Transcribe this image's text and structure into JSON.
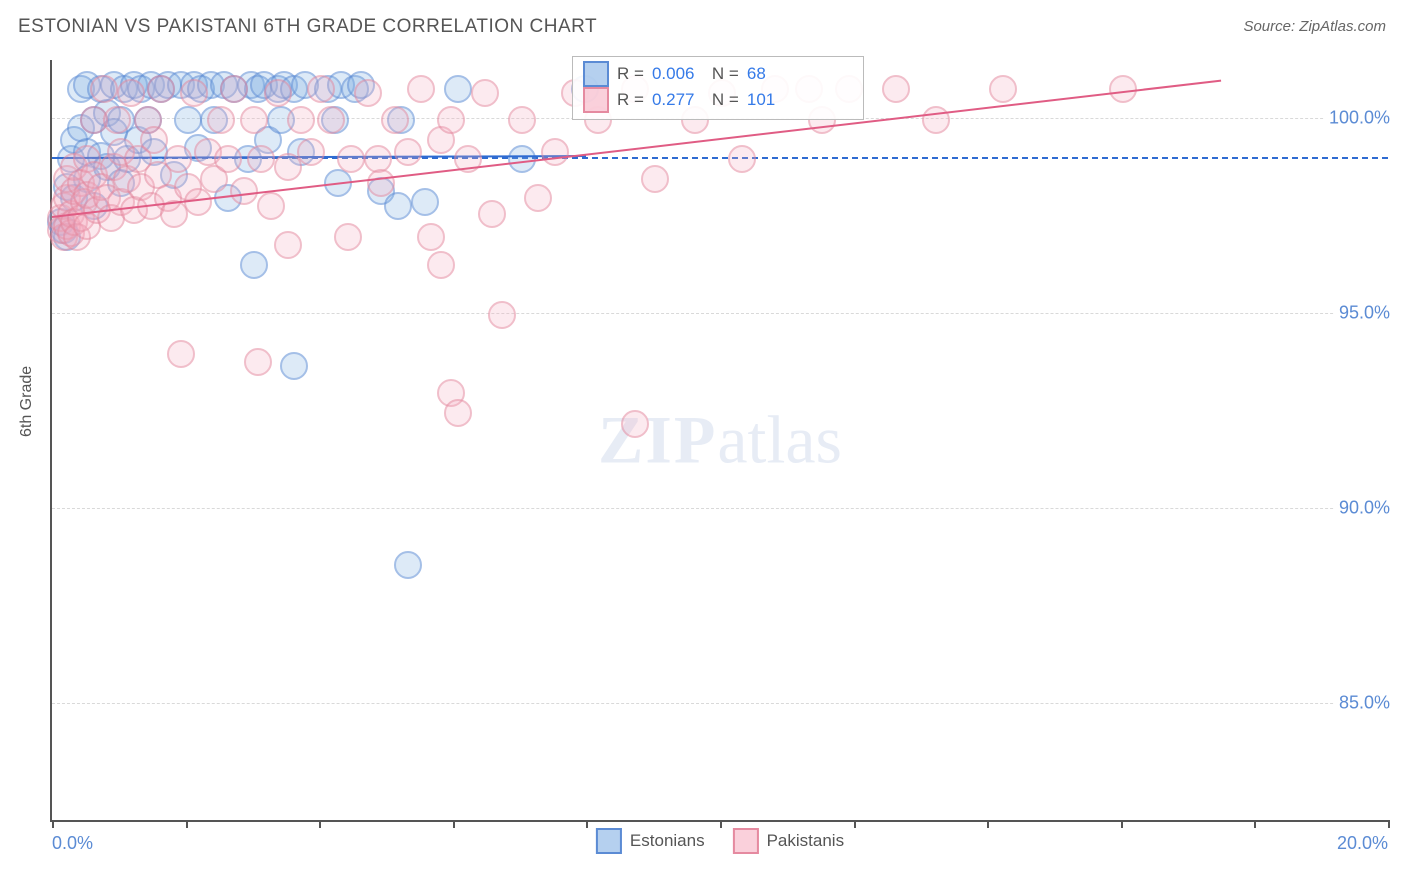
{
  "title": "ESTONIAN VS PAKISTANI 6TH GRADE CORRELATION CHART",
  "source": "Source: ZipAtlas.com",
  "watermark_a": "ZIP",
  "watermark_b": "atlas",
  "yaxis_title": "6th Grade",
  "chart": {
    "type": "scatter",
    "xlim": [
      0,
      20
    ],
    "ylim": [
      82,
      101.5
    ],
    "yticks": [
      85.0,
      90.0,
      95.0,
      100.0
    ],
    "ytick_labels": [
      "85.0%",
      "90.0%",
      "95.0%",
      "100.0%"
    ],
    "xticks": [
      0,
      2,
      4,
      6,
      8,
      10,
      12,
      14,
      16,
      18,
      20
    ],
    "xlabel_min": "0.0%",
    "xlabel_max": "20.0%",
    "grid_color": "#d9d9d9",
    "background_color": "#ffffff",
    "axis_color": "#555555",
    "ref_dashed_y": 99.0,
    "series": [
      {
        "name": "Estonians",
        "color_fill": "rgba(120,170,225,0.45)",
        "color_border": "#5b8bd4",
        "R": "0.006",
        "N": "68",
        "trend": {
          "x1": 0,
          "y1": 99.0,
          "x2": 8.0,
          "y2": 99.05,
          "color": "#2e6bd1"
        },
        "points": [
          [
            0.1,
            97.4
          ],
          [
            0.15,
            97.2
          ],
          [
            0.2,
            97.0
          ],
          [
            0.2,
            98.3
          ],
          [
            0.25,
            99.0
          ],
          [
            0.3,
            98.0
          ],
          [
            0.3,
            99.5
          ],
          [
            0.4,
            100.8
          ],
          [
            0.4,
            99.8
          ],
          [
            0.5,
            98.5
          ],
          [
            0.5,
            99.2
          ],
          [
            0.5,
            100.9
          ],
          [
            0.6,
            97.8
          ],
          [
            0.6,
            100.0
          ],
          [
            0.7,
            99.1
          ],
          [
            0.7,
            100.8
          ],
          [
            0.8,
            98.8
          ],
          [
            0.8,
            100.2
          ],
          [
            0.9,
            99.7
          ],
          [
            0.9,
            100.9
          ],
          [
            1.0,
            98.4
          ],
          [
            1.0,
            100.0
          ],
          [
            1.05,
            100.8
          ],
          [
            1.1,
            99.0
          ],
          [
            1.2,
            100.9
          ],
          [
            1.25,
            99.5
          ],
          [
            1.3,
            100.8
          ],
          [
            1.4,
            100.0
          ],
          [
            1.45,
            100.9
          ],
          [
            1.5,
            99.2
          ],
          [
            1.6,
            100.8
          ],
          [
            1.7,
            100.9
          ],
          [
            1.8,
            98.6
          ],
          [
            1.9,
            100.9
          ],
          [
            2.0,
            100.0
          ],
          [
            2.1,
            100.9
          ],
          [
            2.15,
            99.3
          ],
          [
            2.2,
            100.8
          ],
          [
            2.35,
            100.9
          ],
          [
            2.4,
            100.0
          ],
          [
            2.55,
            100.9
          ],
          [
            2.6,
            98.0
          ],
          [
            2.7,
            100.8
          ],
          [
            2.9,
            99.0
          ],
          [
            2.95,
            100.9
          ],
          [
            3.0,
            96.3
          ],
          [
            3.05,
            100.8
          ],
          [
            3.15,
            100.9
          ],
          [
            3.2,
            99.5
          ],
          [
            3.35,
            100.8
          ],
          [
            3.4,
            100.0
          ],
          [
            3.45,
            100.9
          ],
          [
            3.6,
            100.8
          ],
          [
            3.7,
            99.2
          ],
          [
            3.75,
            100.9
          ],
          [
            3.6,
            93.7
          ],
          [
            4.1,
            100.8
          ],
          [
            4.2,
            100.0
          ],
          [
            4.25,
            98.4
          ],
          [
            4.3,
            100.9
          ],
          [
            4.5,
            100.8
          ],
          [
            4.6,
            100.9
          ],
          [
            4.9,
            98.2
          ],
          [
            5.15,
            97.8
          ],
          [
            5.2,
            100.0
          ],
          [
            5.3,
            88.6
          ],
          [
            5.55,
            97.9
          ],
          [
            6.05,
            100.8
          ],
          [
            7.0,
            99.0
          ],
          [
            7.95,
            100.8
          ]
        ]
      },
      {
        "name": "Pakistanis",
        "color_fill": "rgba(245,170,190,0.45)",
        "color_border": "#e58aa0",
        "R": "0.277",
        "N": "101",
        "trend": {
          "x1": 0,
          "y1": 97.5,
          "x2": 17.5,
          "y2": 101.0,
          "color": "#e05c84"
        },
        "points": [
          [
            0.1,
            97.2
          ],
          [
            0.1,
            97.5
          ],
          [
            0.15,
            97.0
          ],
          [
            0.15,
            97.8
          ],
          [
            0.2,
            97.3
          ],
          [
            0.2,
            98.0
          ],
          [
            0.2,
            98.5
          ],
          [
            0.25,
            97.1
          ],
          [
            0.25,
            97.6
          ],
          [
            0.3,
            97.4
          ],
          [
            0.3,
            98.2
          ],
          [
            0.3,
            98.8
          ],
          [
            0.35,
            97.0
          ],
          [
            0.4,
            97.5
          ],
          [
            0.4,
            98.4
          ],
          [
            0.45,
            97.9
          ],
          [
            0.5,
            97.3
          ],
          [
            0.5,
            98.1
          ],
          [
            0.5,
            99.0
          ],
          [
            0.6,
            98.6
          ],
          [
            0.6,
            100.0
          ],
          [
            0.65,
            97.7
          ],
          [
            0.7,
            98.3
          ],
          [
            0.75,
            100.8
          ],
          [
            0.8,
            98.0
          ],
          [
            0.85,
            97.5
          ],
          [
            0.9,
            98.8
          ],
          [
            0.95,
            100.0
          ],
          [
            1.0,
            97.9
          ],
          [
            1.0,
            99.2
          ],
          [
            1.1,
            98.5
          ],
          [
            1.15,
            100.7
          ],
          [
            1.2,
            97.7
          ],
          [
            1.25,
            99.0
          ],
          [
            1.3,
            98.3
          ],
          [
            1.4,
            100.0
          ],
          [
            1.45,
            97.8
          ],
          [
            1.5,
            99.5
          ],
          [
            1.55,
            98.6
          ],
          [
            1.6,
            100.8
          ],
          [
            1.7,
            98.0
          ],
          [
            1.8,
            97.6
          ],
          [
            1.85,
            99.0
          ],
          [
            1.9,
            94.0
          ],
          [
            2.0,
            98.3
          ],
          [
            2.1,
            100.7
          ],
          [
            2.15,
            97.9
          ],
          [
            2.3,
            99.2
          ],
          [
            2.4,
            98.5
          ],
          [
            2.5,
            100.0
          ],
          [
            2.6,
            99.0
          ],
          [
            2.7,
            100.8
          ],
          [
            2.85,
            98.2
          ],
          [
            3.0,
            100.0
          ],
          [
            3.05,
            93.8
          ],
          [
            3.1,
            99.0
          ],
          [
            3.25,
            97.8
          ],
          [
            3.35,
            100.7
          ],
          [
            3.5,
            98.8
          ],
          [
            3.5,
            96.8
          ],
          [
            3.7,
            100.0
          ],
          [
            3.85,
            99.2
          ],
          [
            4.0,
            100.8
          ],
          [
            4.15,
            100.0
          ],
          [
            4.4,
            97.0
          ],
          [
            4.45,
            99.0
          ],
          [
            4.7,
            100.7
          ],
          [
            4.85,
            99.0
          ],
          [
            4.9,
            98.4
          ],
          [
            5.1,
            100.0
          ],
          [
            5.3,
            99.2
          ],
          [
            5.5,
            100.8
          ],
          [
            5.65,
            97.0
          ],
          [
            5.8,
            99.5
          ],
          [
            5.8,
            96.3
          ],
          [
            5.95,
            100.0
          ],
          [
            5.95,
            93.0
          ],
          [
            6.05,
            92.5
          ],
          [
            6.2,
            99.0
          ],
          [
            6.45,
            100.7
          ],
          [
            6.55,
            97.6
          ],
          [
            6.7,
            95.0
          ],
          [
            7.0,
            100.0
          ],
          [
            7.25,
            98.0
          ],
          [
            7.5,
            99.2
          ],
          [
            7.8,
            100.7
          ],
          [
            8.15,
            100.0
          ],
          [
            8.7,
            100.8
          ],
          [
            8.7,
            92.2
          ],
          [
            9.0,
            98.5
          ],
          [
            9.6,
            100.0
          ],
          [
            10.0,
            100.7
          ],
          [
            10.3,
            99.0
          ],
          [
            10.8,
            100.8
          ],
          [
            11.3,
            100.8
          ],
          [
            11.5,
            100.0
          ],
          [
            11.9,
            100.8
          ],
          [
            12.6,
            100.8
          ],
          [
            13.2,
            100.0
          ],
          [
            14.2,
            100.8
          ],
          [
            16.0,
            100.8
          ]
        ]
      }
    ],
    "legend_bottom": {
      "items": [
        {
          "label": "Estonians",
          "swatch": "blue"
        },
        {
          "label": "Pakistanis",
          "swatch": "pink"
        }
      ]
    }
  }
}
